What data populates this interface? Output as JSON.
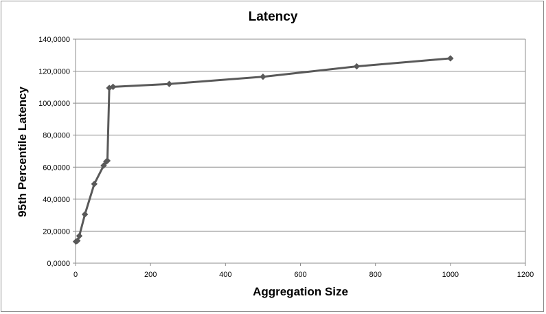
{
  "chart_data": {
    "type": "line",
    "title": "Latency",
    "xlabel": "Aggregation Size",
    "ylabel": "95th Percentile Latency",
    "xlim": [
      0,
      1200
    ],
    "ylim": [
      0,
      140000
    ],
    "x_ticks": [
      "0",
      "200",
      "400",
      "600",
      "800",
      "1000",
      "1200"
    ],
    "y_ticks": [
      "0,0000",
      "20,0000",
      "40,0000",
      "60,0000",
      "80,0000",
      "100,0000",
      "120,0000",
      "140,0000"
    ],
    "grid": "horizontal",
    "legend": "none",
    "series": [
      {
        "x": [
          1,
          5,
          10,
          25,
          50,
          75,
          82,
          85,
          90,
          100,
          250,
          500,
          750,
          1000
        ],
        "y": [
          13500,
          14000,
          17000,
          30500,
          49500,
          61000,
          63500,
          64000,
          109500,
          110200,
          112000,
          116500,
          123000,
          128000
        ],
        "color": "#595959"
      }
    ]
  }
}
